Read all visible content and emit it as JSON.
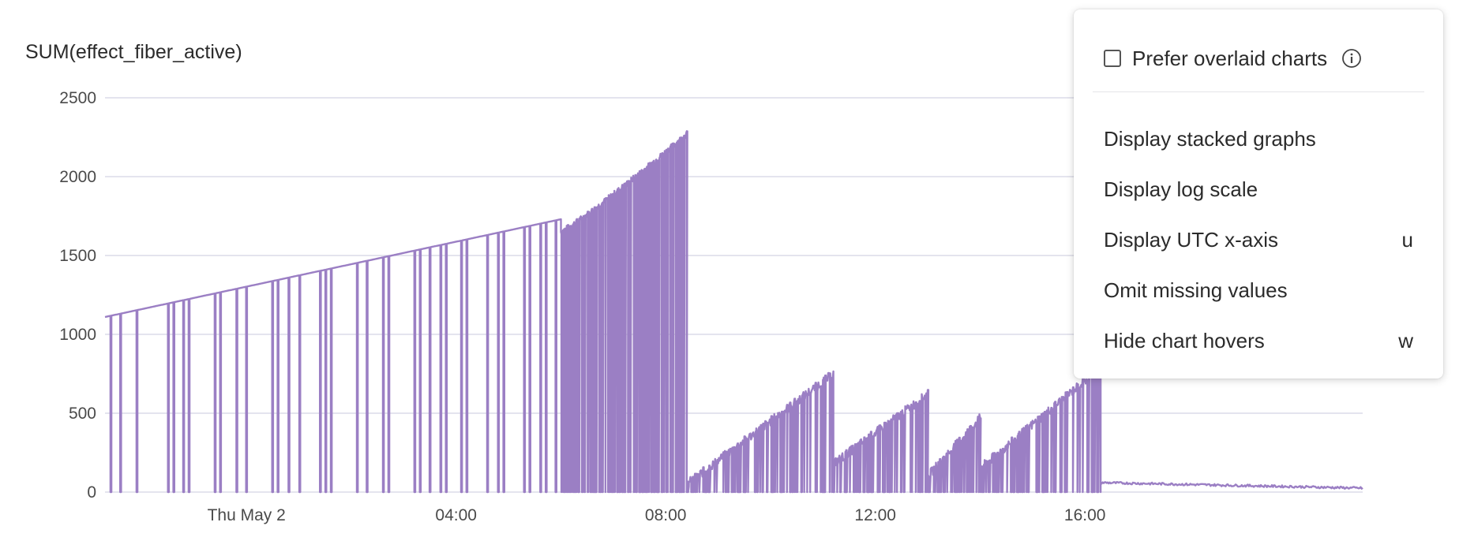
{
  "chart_data": {
    "type": "line",
    "title": "SUM(effect_fiber_active)",
    "ylim": [
      0,
      2500
    ],
    "y_ticks": [
      "0",
      "500",
      "1000",
      "1500",
      "2000",
      "2500"
    ],
    "x_ticks": [
      "Thu May 2",
      "04:00",
      "08:00",
      "12:00",
      "16:00"
    ],
    "x_range_hours": [
      -2.7,
      21.3
    ],
    "grid": "horizontal",
    "color": "#9b7fc4",
    "series": [
      {
        "segments": [
          {
            "x_hours": [
              -2.7,
              6.0
            ],
            "y": [
              1110,
              1730
            ],
            "dropouts": [
              -2.6,
              -2.4,
              -2.1,
              -1.5,
              -1.4,
              -1.2,
              -1.1,
              -0.6,
              -0.5,
              -0.2,
              0.0,
              0.5,
              0.6,
              0.8,
              1.0,
              1.4,
              1.5,
              1.6,
              2.1,
              2.3,
              2.6,
              2.7,
              3.2,
              3.3,
              3.5,
              3.7,
              3.8,
              4.1,
              4.2,
              4.6,
              4.8,
              4.9,
              5.3,
              5.4,
              5.6,
              5.7,
              5.9
            ]
          },
          {
            "x_hours": [
              6.0,
              8.4
            ],
            "y": [
              1650,
              2270
            ],
            "dense_dropouts": true
          }
        ]
      },
      {
        "segments": [
          {
            "x_hours": [
              8.4,
              11.2
            ],
            "y": [
              50,
              750
            ]
          },
          {
            "x_hours": [
              11.2,
              13.0
            ],
            "y": [
              180,
              620
            ]
          },
          {
            "x_hours": [
              13.0,
              14.0
            ],
            "y": [
              100,
              470
            ]
          },
          {
            "x_hours": [
              14.0,
              16.3
            ],
            "y": [
              150,
              790
            ]
          },
          {
            "x_hours": [
              16.3,
              21.3
            ],
            "y": [
              60,
              25
            ]
          }
        ]
      }
    ]
  },
  "menu": {
    "prefer_overlaid_label": "Prefer overlaid charts",
    "prefer_overlaid_checked": false,
    "items": [
      {
        "label": "Display stacked graphs",
        "shortcut": ""
      },
      {
        "label": "Display log scale",
        "shortcut": ""
      },
      {
        "label": "Display UTC x-axis",
        "shortcut": "u"
      },
      {
        "label": "Omit missing values",
        "shortcut": ""
      },
      {
        "label": "Hide chart hovers",
        "shortcut": "w"
      }
    ],
    "info_icon": "info-circle-icon"
  }
}
